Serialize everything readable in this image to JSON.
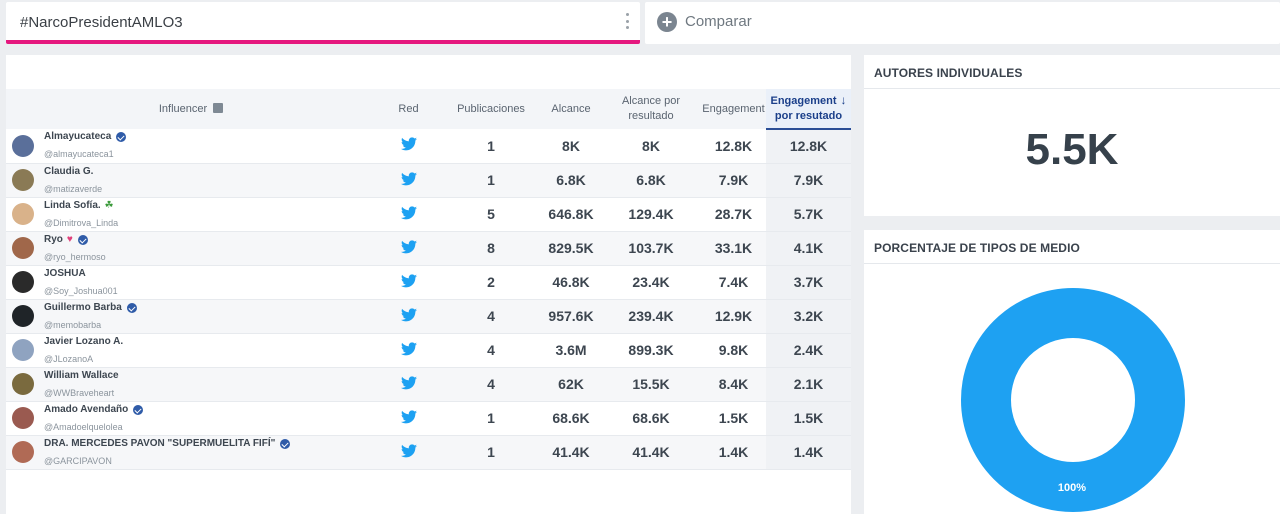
{
  "search": {
    "query": "#NarcoPresidentAMLO3",
    "compare_label": "Comparar"
  },
  "table": {
    "headers": {
      "influencer": "Influencer",
      "red": "Red",
      "publicaciones": "Publicaciones",
      "alcance": "Alcance",
      "alcance_por_resultado_1": "Alcance por",
      "alcance_por_resultado_2": "resultado",
      "engagement": "Engagement",
      "engagement_por_resultado_1": "Engagement",
      "engagement_por_resultado_2": "por resutado"
    },
    "rows": [
      {
        "name": "Almayucateca",
        "handle": "@almayucateca1",
        "verified": true,
        "emoji": "",
        "avatar_color": "#5a6f9a",
        "network": "twitter-icon",
        "publicaciones": "1",
        "alcance": "8K",
        "alcance_res": "8K",
        "engagement": "12.8K",
        "engagement_res": "12.8K"
      },
      {
        "name": "Claudia G.",
        "handle": "@matizaverde",
        "verified": false,
        "emoji": "",
        "avatar_color": "#8a7a55",
        "network": "twitter-icon",
        "publicaciones": "1",
        "alcance": "6.8K",
        "alcance_res": "6.8K",
        "engagement": "7.9K",
        "engagement_res": "7.9K"
      },
      {
        "name": "Linda Sofía.",
        "handle": "@Dimitrova_Linda",
        "verified": false,
        "emoji": "☘",
        "avatar_color": "#d9b28a",
        "network": "twitter-icon",
        "publicaciones": "5",
        "alcance": "646.8K",
        "alcance_res": "129.4K",
        "engagement": "28.7K",
        "engagement_res": "5.7K"
      },
      {
        "name": "Ryo",
        "handle": "@ryo_hermoso",
        "verified": true,
        "emoji": "♥",
        "avatar_color": "#a0674a",
        "network": "twitter-icon",
        "publicaciones": "8",
        "alcance": "829.5K",
        "alcance_res": "103.7K",
        "engagement": "33.1K",
        "engagement_res": "4.1K"
      },
      {
        "name": "JOSHUA",
        "handle": "@Soy_Joshua001",
        "verified": false,
        "emoji": "",
        "avatar_color": "#2a2a2a",
        "network": "twitter-icon",
        "publicaciones": "2",
        "alcance": "46.8K",
        "alcance_res": "23.4K",
        "engagement": "7.4K",
        "engagement_res": "3.7K"
      },
      {
        "name": "Guillermo Barba",
        "handle": "@memobarba",
        "verified": true,
        "emoji": "",
        "avatar_color": "#1f2428",
        "network": "twitter-icon",
        "publicaciones": "4",
        "alcance": "957.6K",
        "alcance_res": "239.4K",
        "engagement": "12.9K",
        "engagement_res": "3.2K"
      },
      {
        "name": "Javier Lozano A.",
        "handle": "@JLozanoA",
        "verified": false,
        "emoji": "",
        "avatar_color": "#8fa3c0",
        "network": "twitter-icon",
        "publicaciones": "4",
        "alcance": "3.6M",
        "alcance_res": "899.3K",
        "engagement": "9.8K",
        "engagement_res": "2.4K"
      },
      {
        "name": "William Wallace",
        "handle": "@WWBraveheart",
        "verified": false,
        "emoji": "",
        "avatar_color": "#7a6a3e",
        "network": "twitter-icon",
        "publicaciones": "4",
        "alcance": "62K",
        "alcance_res": "15.5K",
        "engagement": "8.4K",
        "engagement_res": "2.1K"
      },
      {
        "name": "Amado Avendaño",
        "handle": "@Amadoelquelolea",
        "verified": true,
        "emoji": "",
        "avatar_color": "#9a5a50",
        "network": "twitter-icon",
        "publicaciones": "1",
        "alcance": "68.6K",
        "alcance_res": "68.6K",
        "engagement": "1.5K",
        "engagement_res": "1.5K"
      },
      {
        "name": "DRA. MERCEDES PAVON \"SUPERMUELITA FIFÍ\"",
        "handle": "@GARCIPAVON",
        "verified": true,
        "emoji": "",
        "avatar_color": "#b06a55",
        "network": "twitter-icon",
        "publicaciones": "1",
        "alcance": "41.4K",
        "alcance_res": "41.4K",
        "engagement": "1.4K",
        "engagement_res": "1.4K"
      }
    ]
  },
  "autores": {
    "title": "AUTORES INDIVIDUALES",
    "value": "5.5K"
  },
  "tipos_medio": {
    "title": "PORCENTAJE DE TIPOS DE MEDIO",
    "slice_label": "100%",
    "color": "#1ea1f2",
    "share": 1.0
  }
}
